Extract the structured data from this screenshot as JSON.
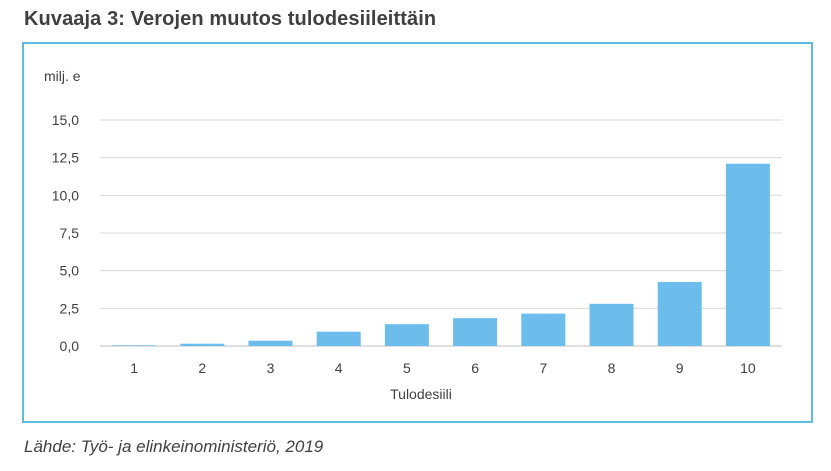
{
  "title": "Kuvaaja 3: Verojen muutos tulodesiileittäin",
  "source": "Lähde: Työ- ja elinkeinoministeriö, 2019",
  "colors": {
    "bar": "#6cbdec",
    "frame": "#5bbde0",
    "grid": "#d9d9d9",
    "text": "#404040"
  },
  "chart_data": {
    "type": "bar",
    "unit_label": "milj. e",
    "xlabel": "Tulodesiili",
    "categories": [
      "1",
      "2",
      "3",
      "4",
      "5",
      "6",
      "7",
      "8",
      "9",
      "10"
    ],
    "values": [
      0.05,
      0.15,
      0.35,
      0.95,
      1.45,
      1.85,
      2.15,
      2.8,
      4.25,
      12.1
    ],
    "ylim": [
      0,
      15
    ],
    "yticks": [
      "0,0",
      "2,5",
      "5,0",
      "7,5",
      "10,0",
      "12,5",
      "15,0"
    ],
    "grid": true,
    "legend": "none"
  }
}
